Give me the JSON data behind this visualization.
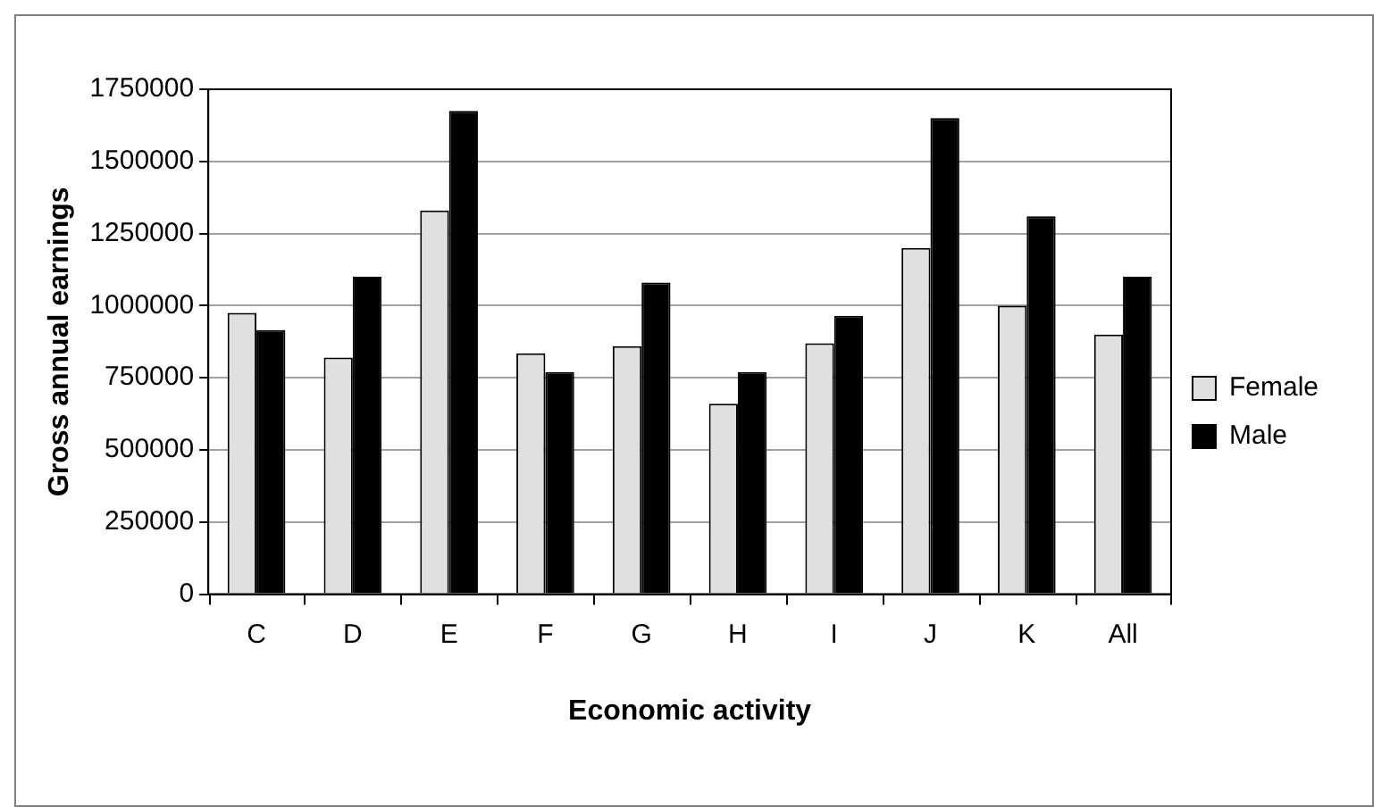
{
  "chart_data": {
    "type": "bar",
    "xlabel": "Economic activity",
    "ylabel": "Gross annual earnings",
    "categories": [
      "C",
      "D",
      "E",
      "F",
      "G",
      "H",
      "I",
      "J",
      "K",
      "All"
    ],
    "series": [
      {
        "name": "Female",
        "color": "#e0e0e0",
        "values": [
          975000,
          820000,
          1330000,
          835000,
          860000,
          660000,
          870000,
          1200000,
          1000000,
          900000
        ]
      },
      {
        "name": "Male",
        "color": "#000000",
        "values": [
          915000,
          1100000,
          1675000,
          770000,
          1080000,
          770000,
          965000,
          1650000,
          1310000,
          1100000
        ]
      }
    ],
    "ylim": [
      0,
      1750000
    ],
    "yticks": [
      0,
      250000,
      500000,
      750000,
      1000000,
      1250000,
      1500000,
      1750000
    ],
    "grid": "y",
    "legend": "right"
  }
}
